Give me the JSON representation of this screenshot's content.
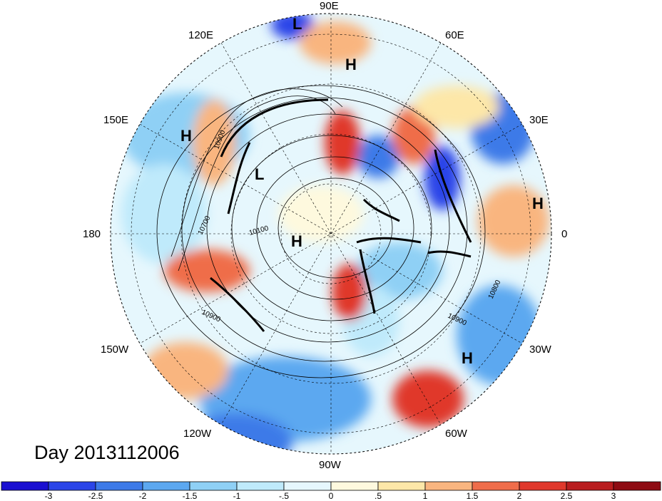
{
  "map": {
    "title": "Day 2013112006",
    "lon_labels": [
      "90E",
      "60E",
      "30E",
      "0",
      "30W",
      "60W",
      "90W",
      "120W",
      "150W",
      "180",
      "150E",
      "120E"
    ],
    "pressure_centers": [
      "L",
      "H",
      "H",
      "L",
      "H",
      "H",
      "H"
    ],
    "contour_labels": [
      "10900",
      "10700",
      "10100",
      "10900",
      "10900",
      "10800"
    ],
    "colors": {
      "cold": "#2b5ee8",
      "cool": "#8fd0f5",
      "warm": "#f7a072",
      "hot": "#d7201f"
    }
  },
  "colorbar": {
    "ticks": [
      "-3",
      "-2.5",
      "-2",
      "-1.5",
      "-1",
      "-.5",
      "0",
      ".5",
      "1",
      "1.5",
      "2",
      "2.5",
      "3"
    ],
    "colors": [
      "#1a0fd1",
      "#2b45e8",
      "#3d7ae8",
      "#5ca8f0",
      "#8fd0f5",
      "#bfeafb",
      "#e6f7fd",
      "#fef9de",
      "#fde7a8",
      "#f9b57f",
      "#ef6d4a",
      "#e0382c",
      "#b91d1f",
      "#8e0b13"
    ]
  }
}
